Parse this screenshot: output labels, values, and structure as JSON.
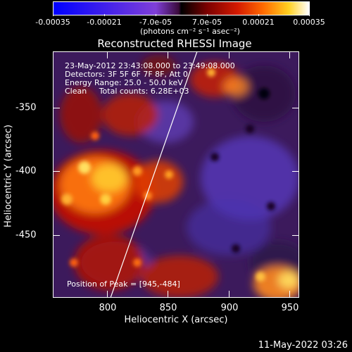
{
  "colorbar": {
    "ticks": [
      "-0.00035",
      "-0.00021",
      "-7.0e-05",
      "7.0e-05",
      "0.00021",
      "0.00035"
    ],
    "unit": "(photons cm⁻² s⁻¹ asec⁻²)"
  },
  "title": "Reconstructed RHESSI Image",
  "annotations": {
    "time_range": "23-May-2012 23:43:08.000 to 23:49:08.000",
    "detectors": "Detectors: 3F 5F 6F 7F 8F, Att 0",
    "energy": "Energy Range: 25.0 - 50.0 keV",
    "clean": "Clean     Total counts: 6.28E+03",
    "peak": "Position of Peak = [945,-484]"
  },
  "axes": {
    "xlabel": "Heliocentric X (arcsec)",
    "ylabel": "Heliocentric Y (arcsec)",
    "xticks": [
      "800",
      "850",
      "900",
      "950"
    ],
    "yticks": [
      "-350",
      "-400",
      "-450"
    ]
  },
  "timestamp": "11-May-2022 03:26",
  "colors": {
    "background": "#000000",
    "text": "#ffffff"
  }
}
